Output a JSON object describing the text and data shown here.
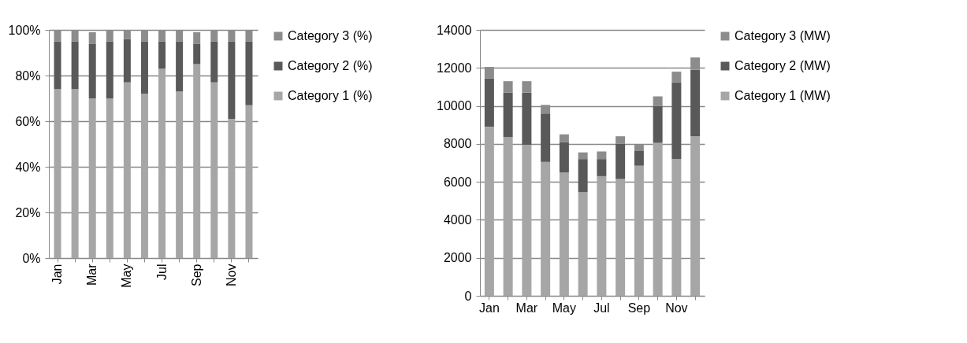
{
  "chart_data": [
    {
      "type": "bar",
      "stacked": true,
      "categories": [
        "Jan",
        null,
        "Mar",
        null,
        "May",
        null,
        "Jul",
        null,
        "Sep",
        null,
        "Nov",
        null
      ],
      "series": [
        {
          "name": "Category 1 (%)",
          "color": "#a6a6a6",
          "values": [
            74,
            74,
            70,
            70,
            77,
            72,
            83,
            73,
            85,
            77,
            61,
            67
          ]
        },
        {
          "name": "Category 2 (%)",
          "color": "#595959",
          "values": [
            21,
            21,
            24,
            25,
            19,
            23,
            12,
            22,
            9,
            18,
            34,
            28
          ]
        },
        {
          "name": "Category 3 (%)",
          "color": "#8c8c8c",
          "values": [
            5,
            5,
            5,
            5,
            4,
            5,
            5,
            5,
            5,
            5,
            5,
            5
          ]
        }
      ],
      "ylim": [
        0,
        100
      ],
      "yticks": [
        {
          "value": 0,
          "label": "0%"
        },
        {
          "value": 20,
          "label": "20%"
        },
        {
          "value": 40,
          "label": "40%"
        },
        {
          "value": 60,
          "label": "60%"
        },
        {
          "value": 80,
          "label": "80%"
        },
        {
          "value": 100,
          "label": "100%"
        }
      ],
      "grid": "y",
      "legend": "right"
    },
    {
      "type": "bar",
      "stacked": true,
      "categories": [
        "Jan",
        null,
        "Mar",
        null,
        "May",
        null,
        "Jul",
        null,
        "Sep",
        null,
        "Nov",
        null
      ],
      "series": [
        {
          "name": "Category 1 (MW)",
          "color": "#a6a6a6",
          "values": [
            8900,
            8350,
            7950,
            7050,
            6500,
            5450,
            6300,
            6150,
            6850,
            8050,
            7200,
            8400
          ]
        },
        {
          "name": "Category 2 (MW)",
          "color": "#595959",
          "values": [
            2550,
            2350,
            2750,
            2550,
            1600,
            1750,
            900,
            1850,
            800,
            1950,
            4050,
            3500
          ]
        },
        {
          "name": "Category 3 (MW)",
          "color": "#8c8c8c",
          "values": [
            600,
            600,
            600,
            450,
            400,
            350,
            400,
            400,
            300,
            500,
            550,
            650
          ]
        }
      ],
      "ylim": [
        0,
        14000
      ],
      "yticks": [
        0,
        2000,
        4000,
        6000,
        8000,
        10000,
        12000,
        14000
      ],
      "grid": "y",
      "legend": "right"
    }
  ]
}
